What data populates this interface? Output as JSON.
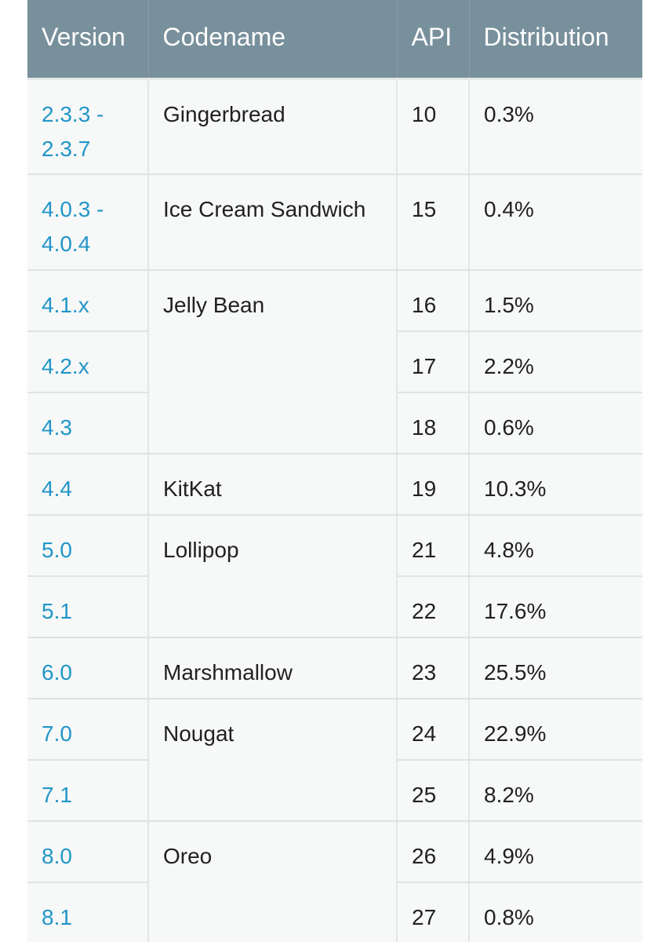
{
  "table": {
    "headers": {
      "version": "Version",
      "codename": "Codename",
      "api": "API",
      "distribution": "Distribution"
    },
    "rows": [
      {
        "version": "2.3.3 - 2.3.7",
        "codename": "Gingerbread",
        "api": "10",
        "distribution": "0.3%"
      },
      {
        "version": "4.0.3 - 4.0.4",
        "codename": "Ice Cream Sandwich",
        "api": "15",
        "distribution": "0.4%"
      },
      {
        "version": "4.1.x",
        "codename": "Jelly Bean",
        "api": "16",
        "distribution": "1.5%"
      },
      {
        "version": "4.2.x",
        "api": "17",
        "distribution": "2.2%"
      },
      {
        "version": "4.3",
        "api": "18",
        "distribution": "0.6%"
      },
      {
        "version": "4.4",
        "codename": "KitKat",
        "api": "19",
        "distribution": "10.3%"
      },
      {
        "version": "5.0",
        "codename": "Lollipop",
        "api": "21",
        "distribution": "4.8%"
      },
      {
        "version": "5.1",
        "api": "22",
        "distribution": "17.6%"
      },
      {
        "version": "6.0",
        "codename": "Marshmallow",
        "api": "23",
        "distribution": "25.5%"
      },
      {
        "version": "7.0",
        "codename": "Nougat",
        "api": "24",
        "distribution": "22.9%"
      },
      {
        "version": "7.1",
        "api": "25",
        "distribution": "8.2%"
      },
      {
        "version": "8.0",
        "codename": "Oreo",
        "api": "26",
        "distribution": "4.9%"
      },
      {
        "version": "8.1",
        "api": "27",
        "distribution": "0.8%"
      }
    ]
  },
  "colors": {
    "header_bg": "#78909c",
    "header_text": "#ffffff",
    "link": "#2196c8",
    "row_bg": "#f7f8f8",
    "text": "#212121"
  }
}
